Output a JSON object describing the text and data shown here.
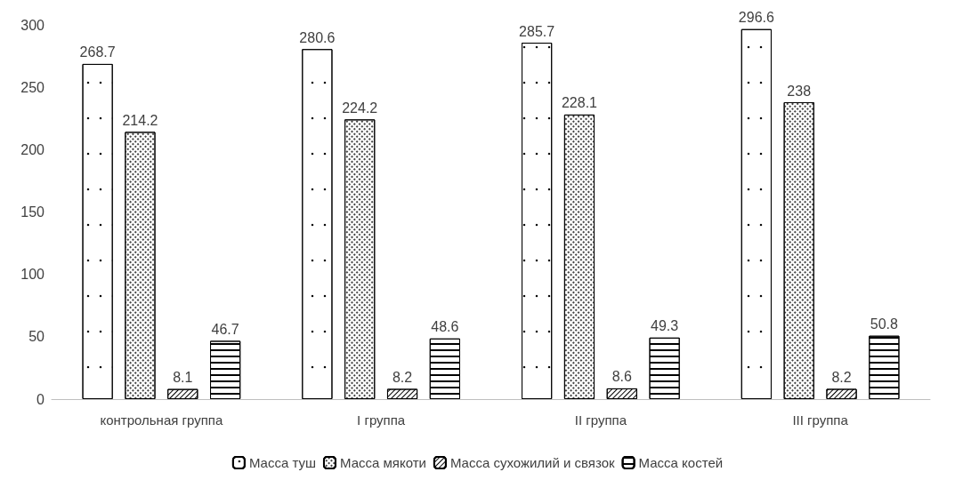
{
  "chart_data": {
    "type": "bar",
    "categories": [
      "контрольная группа",
      "I группа",
      "II группа",
      "III группа"
    ],
    "series": [
      {
        "name": "Масса туш",
        "color": "#ffffff",
        "values": [
          268.7,
          280.6,
          285.7,
          296.6
        ]
      },
      {
        "name": "Масса мякоти",
        "color": "#ffffff",
        "values": [
          214.2,
          224.2,
          228.1,
          238
        ]
      },
      {
        "name": "Масса сухожилий и связок",
        "color": "#ffffff",
        "values": [
          8.1,
          8.2,
          8.6,
          8.2
        ]
      },
      {
        "name": "Масса костей",
        "color": "#ffffff",
        "values": [
          46.7,
          48.6,
          49.3,
          50.8
        ]
      }
    ],
    "ylim": [
      0,
      300
    ],
    "yticks": [
      0,
      50,
      100,
      150,
      200,
      250,
      300
    ],
    "grid": false,
    "legend": "bottom",
    "data_labels": true
  }
}
